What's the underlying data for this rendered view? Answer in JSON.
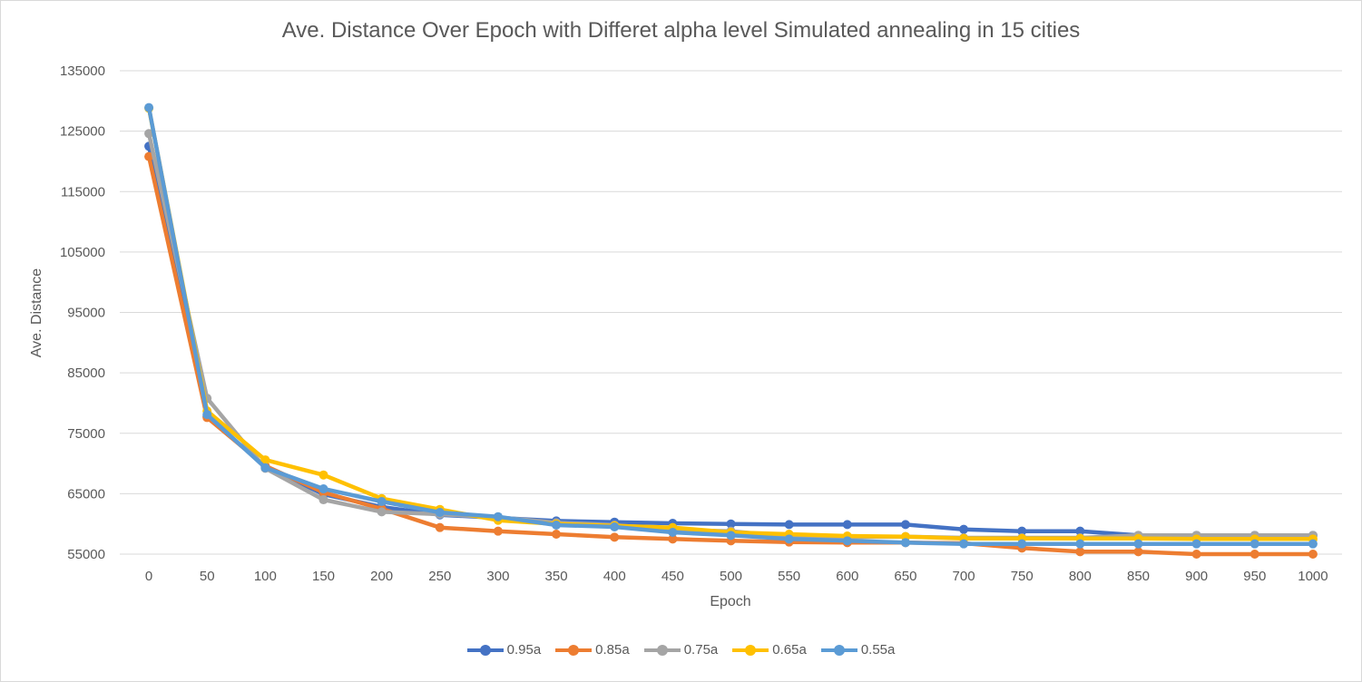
{
  "chart_data": {
    "type": "line",
    "title": "Ave. Distance Over Epoch with Differet alpha level Simulated annealing in 15 cities",
    "xlabel": "Epoch",
    "ylabel": "Ave. Distance",
    "ylim": [
      55000,
      135000
    ],
    "yticks": [
      "55000",
      "65000",
      "75000",
      "85000",
      "95000",
      "105000",
      "115000",
      "125000",
      "135000"
    ],
    "x": [
      0,
      50,
      100,
      150,
      200,
      250,
      300,
      350,
      400,
      450,
      500,
      550,
      600,
      650,
      700,
      750,
      800,
      850,
      900,
      950,
      1000
    ],
    "grid": true,
    "legend": "bottom",
    "series": [
      {
        "name": "0.95a",
        "color": "#4472c4",
        "values": [
          122500,
          77800,
          69500,
          64900,
          62800,
          61500,
          61000,
          60500,
          60300,
          60100,
          60000,
          59900,
          59900,
          59900,
          59100,
          58800,
          58800,
          58100,
          58100,
          58100,
          58100
        ]
      },
      {
        "name": "0.85a",
        "color": "#ed7d31",
        "values": [
          120800,
          77600,
          69600,
          65200,
          62500,
          59400,
          58800,
          58300,
          57800,
          57500,
          57200,
          57000,
          56900,
          56900,
          56800,
          56000,
          55400,
          55400,
          55000,
          55000,
          55000
        ]
      },
      {
        "name": "0.75a",
        "color": "#a5a5a5",
        "values": [
          124600,
          80800,
          69200,
          64000,
          62000,
          61600,
          61100,
          60200,
          59800,
          59000,
          58800,
          57900,
          57800,
          57900,
          57700,
          57700,
          57700,
          58100,
          58100,
          58100,
          58100
        ]
      },
      {
        "name": "0.65a",
        "color": "#ffc000",
        "values": [
          128800,
          78700,
          70600,
          68100,
          64200,
          62400,
          60600,
          60000,
          59700,
          59400,
          58600,
          58300,
          58000,
          57900,
          57600,
          57600,
          57600,
          57600,
          57500,
          57500,
          57500
        ]
      },
      {
        "name": "0.55a",
        "color": "#5b9bd5",
        "values": [
          128900,
          78100,
          69300,
          65800,
          63700,
          61900,
          61200,
          59800,
          59500,
          58600,
          58100,
          57500,
          57200,
          56900,
          56700,
          56700,
          56700,
          56700,
          56700,
          56700,
          56700
        ]
      }
    ]
  }
}
